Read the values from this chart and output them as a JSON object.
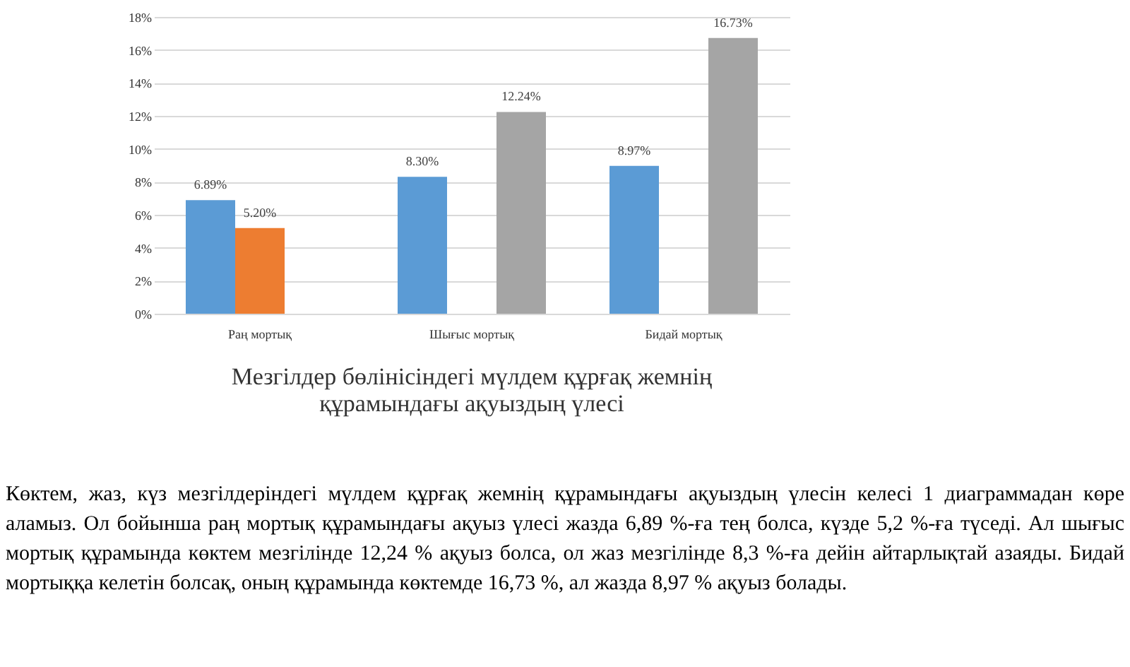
{
  "chart_data": {
    "type": "bar",
    "title": [
      "Мезгілдер бөлініcіндегі мүлдем құрғақ жемнің",
      "құрамындағы ақуыздың үлесі"
    ],
    "categories": [
      "Раң мортық",
      "Шығыс мортық",
      "Бидай мортық"
    ],
    "series": [
      {
        "color": "#5b9bd5",
        "values": [
          6.89,
          8.3,
          8.97
        ],
        "value_labels": [
          "6.89%",
          "8.30%",
          "8.97%"
        ]
      },
      {
        "color": "#ed7d31",
        "values": [
          5.2,
          null,
          null
        ],
        "value_labels": [
          "5.20%",
          null,
          null
        ]
      },
      {
        "color": "#a5a5a5",
        "values": [
          null,
          12.24,
          16.73
        ],
        "value_labels": [
          null,
          "12.24%",
          "16.73%"
        ]
      }
    ],
    "ylim": [
      0,
      18
    ],
    "yticks": [
      {
        "value": 0,
        "label": "0%"
      },
      {
        "value": 2,
        "label": "2%"
      },
      {
        "value": 4,
        "label": "4%"
      },
      {
        "value": 6,
        "label": "6%"
      },
      {
        "value": 8,
        "label": "8%"
      },
      {
        "value": 10,
        "label": "10%"
      },
      {
        "value": 12,
        "label": "12%"
      },
      {
        "value": 14,
        "label": "14%"
      },
      {
        "value": 16,
        "label": "16%"
      },
      {
        "value": 18,
        "label": "18%"
      }
    ],
    "grid": "y",
    "annotations": [
      "Көктем, жаз, күз мезгілдеріндегі мүлдем құрғақ жемнің құрамындағы ақуыздың үлесін келесі 1 диаграммадан көре аламыз. Ол бойынша раң мортық құрамындағы ақуыз үлесі жазда 6,89 %-ға тең болса, күзде 5,2 %-ға түседі. Ал шығыс мортық құрамында көктем мезгілінде 12,24 % ақуыз болса, ол жаз мезгілінде 8,3 %-ға дейін айтарлықтай азаяды. Бидай мортыққа келетін болсақ, оның құрамында көктемде 16,73 %, ал жазда 8,97 % ақуыз болады."
    ]
  }
}
